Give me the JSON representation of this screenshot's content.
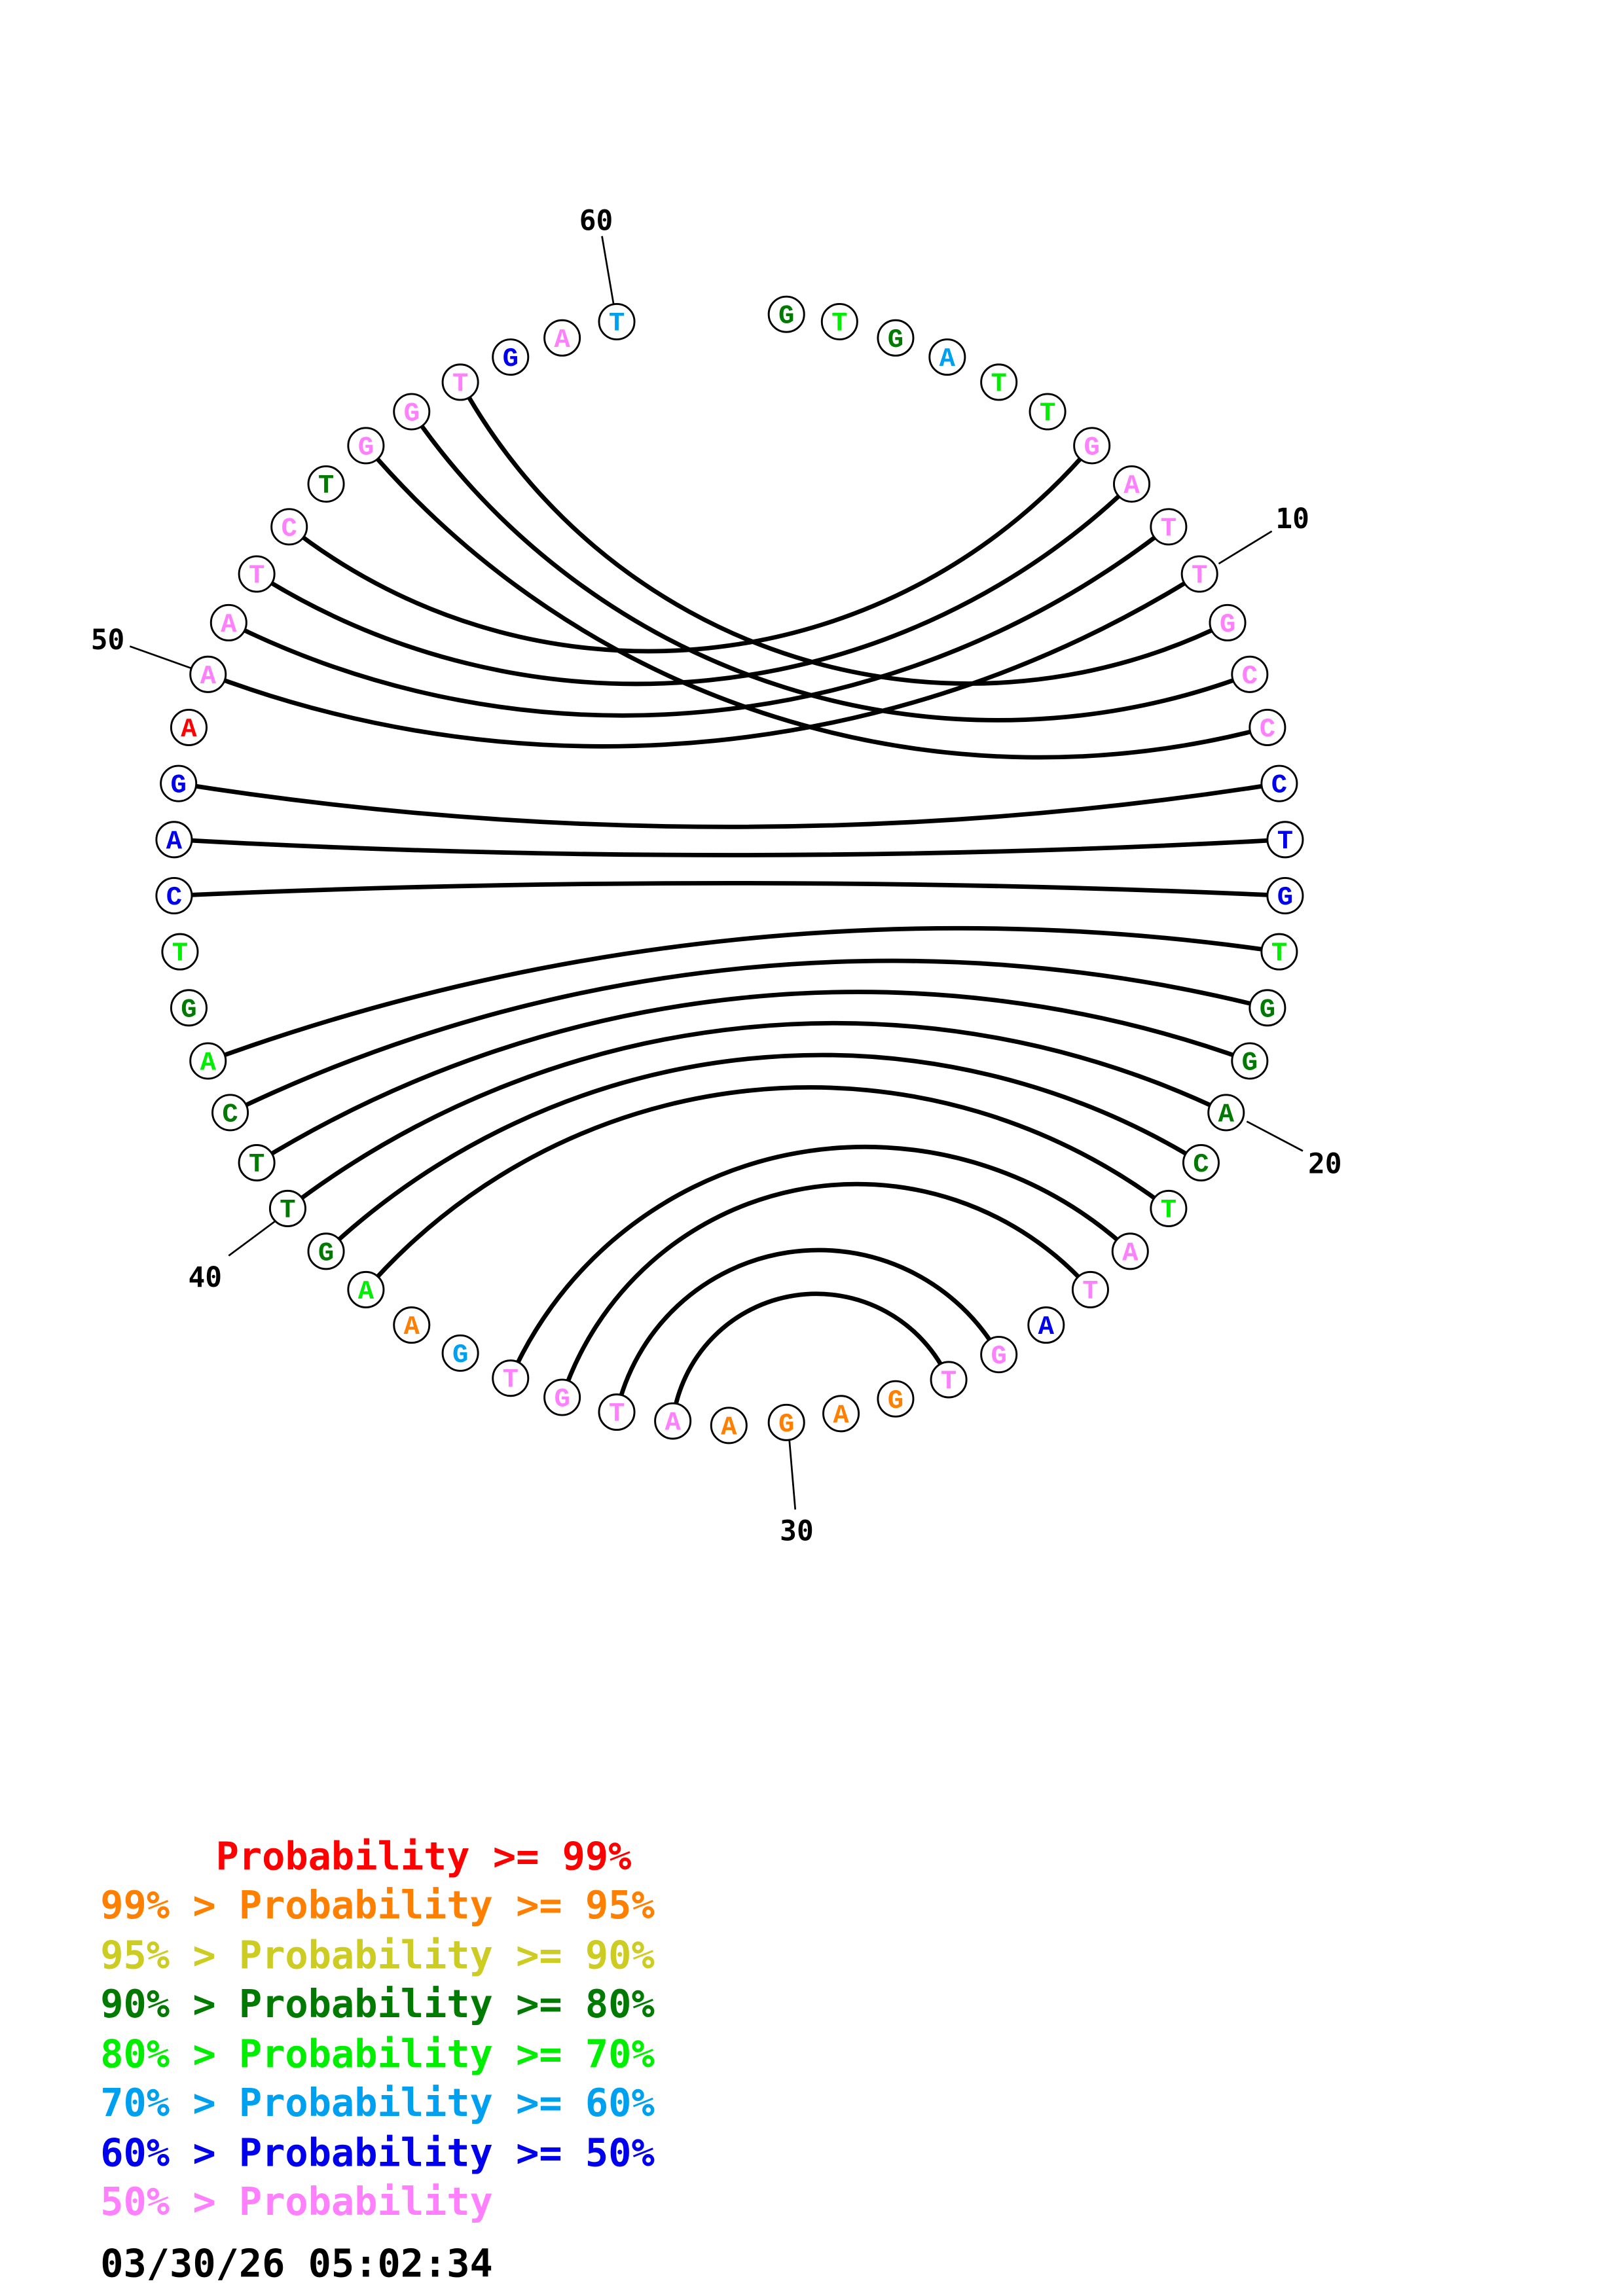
{
  "sequence": "GTGATTGATTGCCCTGTGGACTATAGTGAGAATGTGAAGTTCAGTCAGAAATCTGGTGAT",
  "colors": {
    "red": "#ff0000",
    "orange": "#ff8000",
    "yellow": "#cccc22",
    "darkgreen": "#007a00",
    "green": "#00ee00",
    "skyblue": "#00a0f0",
    "blue": "#0000ee",
    "pink": "#ff80ff"
  },
  "nucleotide_colors": [
    "darkgreen",
    "green",
    "darkgreen",
    "skyblue",
    "green",
    "green",
    "pink",
    "pink",
    "pink",
    "pink",
    "pink",
    "pink",
    "pink",
    "blue",
    "blue",
    "blue",
    "green",
    "darkgreen",
    "darkgreen",
    "darkgreen",
    "darkgreen",
    "green",
    "pink",
    "pink",
    "blue",
    "pink",
    "pink",
    "orange",
    "orange",
    "orange",
    "orange",
    "pink",
    "pink",
    "pink",
    "pink",
    "skyblue",
    "orange",
    "green",
    "darkgreen",
    "darkgreen",
    "darkgreen",
    "darkgreen",
    "green",
    "darkgreen",
    "green",
    "blue",
    "blue",
    "blue",
    "red",
    "pink",
    "pink",
    "pink",
    "pink",
    "darkgreen",
    "pink",
    "pink",
    "pink",
    "blue",
    "pink",
    "skyblue"
  ],
  "pairs": [
    [
      57,
      11
    ],
    [
      56,
      12
    ],
    [
      55,
      13
    ],
    [
      53,
      7
    ],
    [
      52,
      8
    ],
    [
      51,
      9
    ],
    [
      50,
      10
    ],
    [
      48,
      14
    ],
    [
      47,
      15
    ],
    [
      46,
      16
    ],
    [
      43,
      17
    ],
    [
      42,
      18
    ],
    [
      41,
      19
    ],
    [
      40,
      20
    ],
    [
      39,
      21
    ],
    [
      38,
      22
    ],
    [
      35,
      23
    ],
    [
      34,
      24
    ],
    [
      33,
      26
    ],
    [
      32,
      27
    ]
  ],
  "position_labels": [
    "10",
    "20",
    "30",
    "40",
    "50",
    "60"
  ],
  "legend": [
    {
      "text": "     Probability >= 99%",
      "color": "red"
    },
    {
      "text": "99% > Probability >= 95%",
      "color": "orange"
    },
    {
      "text": "95% > Probability >= 90%",
      "color": "yellow"
    },
    {
      "text": "90% > Probability >= 80%",
      "color": "darkgreen"
    },
    {
      "text": "80% > Probability >= 70%",
      "color": "green"
    },
    {
      "text": "70% > Probability >= 60%",
      "color": "skyblue"
    },
    {
      "text": "60% > Probability >= 50%",
      "color": "blue"
    },
    {
      "text": "50% > Probability",
      "color": "pink"
    }
  ],
  "timestamp": "03/30/26 05:02:34"
}
